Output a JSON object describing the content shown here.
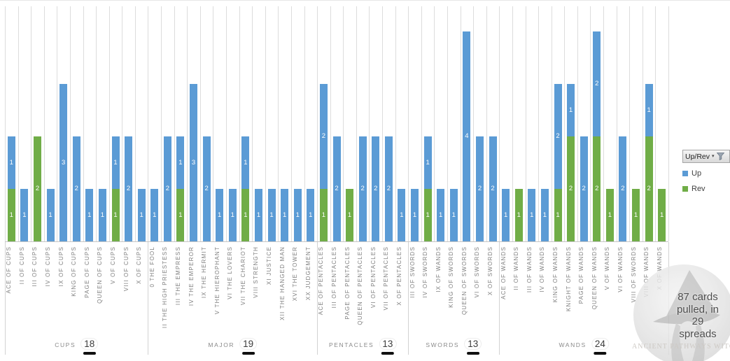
{
  "chart_data": {
    "type": "bar",
    "stacked": true,
    "orientation": "vertical-columns",
    "title": "",
    "xlabel": "",
    "ylabel": "",
    "value_axis": {
      "min": 0,
      "max": 4.5,
      "visible": false
    },
    "gridlines": "vertical-category-only",
    "legend_position": "right",
    "series": [
      {
        "name": "Up",
        "color": "#5B9BD5"
      },
      {
        "name": "Rev",
        "color": "#70AD47"
      }
    ],
    "stack_order_bottom_to_top": [
      "Rev",
      "Up"
    ],
    "groups": [
      {
        "name": "CUPS",
        "total": 18,
        "cards": [
          {
            "label": "ACE OF CUPS",
            "up": 1,
            "rev": 1
          },
          {
            "label": "II OF CUPS",
            "up": 1,
            "rev": 0
          },
          {
            "label": "III OF CUPS",
            "up": 0,
            "rev": 2
          },
          {
            "label": "IV OF CUPS",
            "up": 1,
            "rev": 0
          },
          {
            "label": "IX OF CUPS",
            "up": 3,
            "rev": 0
          },
          {
            "label": "KING OF CUPS",
            "up": 2,
            "rev": 0
          },
          {
            "label": "PAGE OF CUPS",
            "up": 1,
            "rev": 0
          },
          {
            "label": "QUEEN OF CUPS",
            "up": 1,
            "rev": 0
          },
          {
            "label": "V OF CUPS",
            "up": 1,
            "rev": 1
          },
          {
            "label": "VIII OF CUPS",
            "up": 2,
            "rev": 0
          },
          {
            "label": "X OF CUPS",
            "up": 1,
            "rev": 0
          }
        ]
      },
      {
        "name": "MAJOR",
        "total": 19,
        "cards": [
          {
            "label": "0 THE FOOL",
            "up": 1,
            "rev": 0
          },
          {
            "label": "II THE HIGH PRIESTESS",
            "up": 2,
            "rev": 0
          },
          {
            "label": "III THE EMPRESS",
            "up": 1,
            "rev": 1
          },
          {
            "label": "IV THE EMPEROR",
            "up": 3,
            "rev": 0
          },
          {
            "label": "IX THE HERMIT",
            "up": 2,
            "rev": 0
          },
          {
            "label": "V THE HIEROPHANT",
            "up": 1,
            "rev": 0
          },
          {
            "label": "VI THE LOVERS",
            "up": 1,
            "rev": 0
          },
          {
            "label": "VII THE CHARIOT",
            "up": 1,
            "rev": 1
          },
          {
            "label": "VIII STRENGTH",
            "up": 1,
            "rev": 0
          },
          {
            "label": "XI JUSTICE",
            "up": 1,
            "rev": 0
          },
          {
            "label": "XII THE HANGED MAN",
            "up": 1,
            "rev": 0
          },
          {
            "label": "XVI THE TOWER",
            "up": 1,
            "rev": 0
          },
          {
            "label": "XX JUDGEMENT",
            "up": 1,
            "rev": 0
          }
        ]
      },
      {
        "name": "PENTACLES",
        "total": 13,
        "cards": [
          {
            "label": "ACE OF PENTACLES",
            "up": 2,
            "rev": 1
          },
          {
            "label": "III OF PENTACLES",
            "up": 2,
            "rev": 0
          },
          {
            "label": "PAGE OF PENTACLES",
            "up": 0,
            "rev": 1
          },
          {
            "label": "QUEEN OF PENTACLES",
            "up": 2,
            "rev": 0
          },
          {
            "label": "VI OF PENTACLES",
            "up": 2,
            "rev": 0
          },
          {
            "label": "VII OF PENTACLES",
            "up": 2,
            "rev": 0
          },
          {
            "label": "X OF PENTACLES",
            "up": 1,
            "rev": 0
          }
        ]
      },
      {
        "name": "SWORDS",
        "total": 13,
        "cards": [
          {
            "label": "III OF SWORDS",
            "up": 1,
            "rev": 0
          },
          {
            "label": "IV OF SWORDS",
            "up": 1,
            "rev": 1
          },
          {
            "label": "IX OF WANDS",
            "up": 1,
            "rev": 0
          },
          {
            "label": "KING OF SWORDS",
            "up": 1,
            "rev": 0
          },
          {
            "label": "QUEEN OF SWORDS",
            "up": 4,
            "rev": 0
          },
          {
            "label": "VI OF SWORDS",
            "up": 2,
            "rev": 0
          },
          {
            "label": "X OF SWORDS",
            "up": 2,
            "rev": 0
          }
        ]
      },
      {
        "name": "WANDS",
        "total": 24,
        "cards": [
          {
            "label": "ACE OF WANDS",
            "up": 1,
            "rev": 0
          },
          {
            "label": "II OF WANDS",
            "up": 0,
            "rev": 1
          },
          {
            "label": "III OF WANDS",
            "up": 1,
            "rev": 0
          },
          {
            "label": "IV OF WANDS",
            "up": 1,
            "rev": 0
          },
          {
            "label": "KING OF WANDS",
            "up": 2,
            "rev": 1
          },
          {
            "label": "KNIGHT OF WANDS",
            "up": 1,
            "rev": 2
          },
          {
            "label": "PAGE OF WANDS",
            "up": 2,
            "rev": 0
          },
          {
            "label": "QUEEN OF WANDS",
            "up": 2,
            "rev": 2
          },
          {
            "label": "V OF WANDS",
            "up": 0,
            "rev": 1
          },
          {
            "label": "VI OF WANDS",
            "up": 2,
            "rev": 0
          },
          {
            "label": "VIII OF SWORDS",
            "up": 0,
            "rev": 1
          },
          {
            "label": "VIII OF WANDS",
            "up": 1,
            "rev": 2
          },
          {
            "label": "X OF WANDS",
            "up": 0,
            "rev": 1
          }
        ]
      }
    ]
  },
  "legend": {
    "field_button": {
      "label": "Up/Rev"
    },
    "items": [
      {
        "label": "Up",
        "color": "#5B9BD5"
      },
      {
        "label": "Rev",
        "color": "#70AD47"
      }
    ]
  },
  "watermark": {
    "lines": [
      "87 cards",
      "pulled, in",
      "29",
      "spreads"
    ],
    "caption": "ANCIENT PATHWAYS WITCHCRAFT"
  },
  "colors": {
    "up": "#5B9BD5",
    "rev": "#70AD47",
    "gridline": "#DCDCDC",
    "axis_line": "#C6C6C6",
    "axis_label": "#7F7F7F",
    "group_total": "#3B3B3B"
  }
}
